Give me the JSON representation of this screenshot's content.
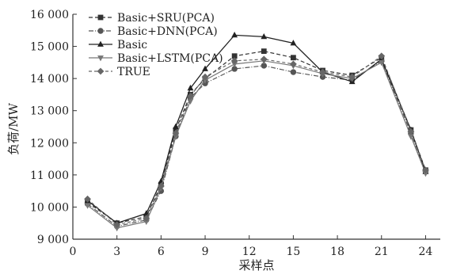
{
  "chart_data": {
    "type": "line",
    "title": "",
    "xlabel": "采样点",
    "ylabel": "负荷/MW",
    "xlim": [
      0,
      25
    ],
    "ylim": [
      9000,
      16000
    ],
    "xticks": [
      0,
      3,
      6,
      9,
      12,
      15,
      18,
      21,
      24
    ],
    "yticks": [
      9000,
      10000,
      11000,
      12000,
      13000,
      14000,
      15000,
      16000
    ],
    "xtick_labels": [
      "0",
      "3",
      "6",
      "9",
      "12",
      "15",
      "18",
      "21",
      "24"
    ],
    "ytick_labels": [
      "9 000",
      "10 000",
      "11 000",
      "12 000",
      "13 000",
      "14 000",
      "15 000",
      "16 000"
    ],
    "legend_position": "top-left",
    "grid": false,
    "x": [
      1,
      3,
      5,
      6,
      7,
      8,
      9,
      11,
      13,
      15,
      17,
      19,
      21,
      23,
      24
    ],
    "series": [
      {
        "name": "Basic+SRU(PCA)",
        "marker": "square",
        "dash": "dashed",
        "values": [
          10150,
          9500,
          9700,
          10700,
          12400,
          13500,
          14000,
          14700,
          14850,
          14650,
          14250,
          14100,
          14650,
          12400,
          11150
        ]
      },
      {
        "name": "Basic+DNN(PCA)",
        "marker": "circle",
        "dash": "dashdot",
        "values": [
          10100,
          9400,
          9600,
          10500,
          12200,
          13400,
          13850,
          14300,
          14400,
          14200,
          14050,
          13950,
          14550,
          12300,
          11100
        ]
      },
      {
        "name": "Basic",
        "marker": "triangle",
        "dash": "solid",
        "values": [
          10200,
          9500,
          9800,
          10800,
          12500,
          13700,
          14300,
          15350,
          15300,
          15100,
          14200,
          13900,
          14600,
          12400,
          11100
        ]
      },
      {
        "name": "Basic+LSTM(PCA)",
        "marker": "triangle-down",
        "dash": "solid",
        "values": [
          10050,
          9350,
          9550,
          10600,
          12200,
          13300,
          13950,
          14450,
          14550,
          14400,
          14150,
          14000,
          14500,
          12200,
          11050
        ]
      },
      {
        "name": "TRUE",
        "marker": "diamond",
        "dash": "dashed",
        "values": [
          10250,
          9450,
          9650,
          10650,
          12300,
          13450,
          14050,
          14550,
          14600,
          14450,
          14200,
          14050,
          14700,
          12350,
          11150
        ]
      }
    ]
  }
}
